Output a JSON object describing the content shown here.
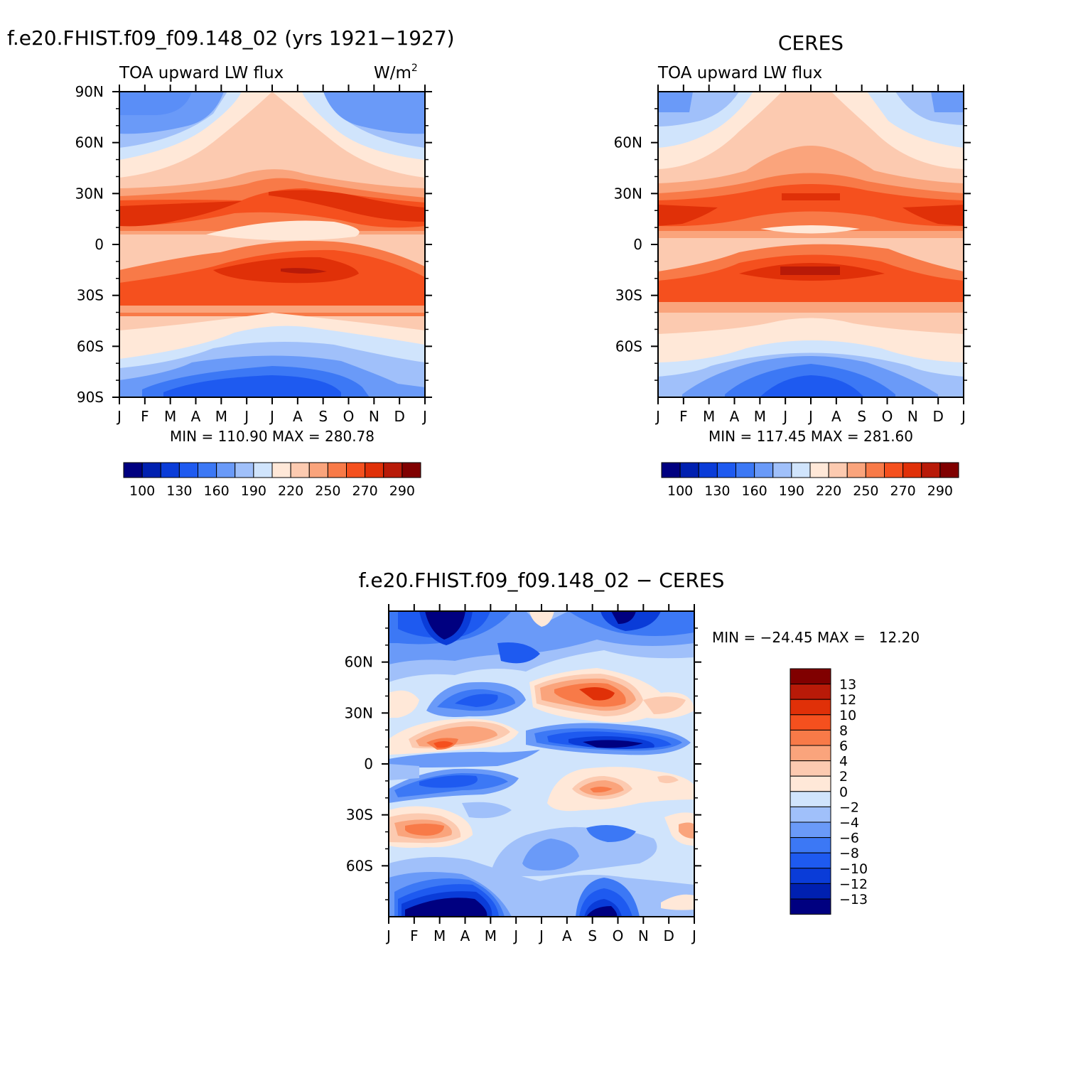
{
  "chart_data": [
    {
      "type": "heatmap",
      "id": "model",
      "title": "f.e20.FHIST.f09_f09.148_02 (yrs 1921-1927)",
      "variable": "TOA upward LW flux",
      "units": "W/m",
      "units_sup": "2",
      "x_ticklabels": [
        "J",
        "F",
        "M",
        "A",
        "M",
        "J",
        "J",
        "A",
        "S",
        "O",
        "N",
        "D",
        "J"
      ],
      "y_ticklabels": [
        "90N",
        "60N",
        "30N",
        "0",
        "30S",
        "60S",
        "90S"
      ],
      "y_values": [
        90,
        60,
        30,
        0,
        -30,
        -60,
        -90
      ],
      "stats": "MIN = 110.90 MAX = 280.78",
      "min": 110.9,
      "max": 280.78,
      "colorbar_labels": [
        "100",
        "130",
        "160",
        "190",
        "220",
        "250",
        "270",
        "290"
      ]
    },
    {
      "type": "heatmap",
      "id": "obs",
      "title": "CERES",
      "variable": "TOA upward LW flux",
      "x_ticklabels": [
        "J",
        "F",
        "M",
        "A",
        "M",
        "J",
        "J",
        "A",
        "S",
        "O",
        "N",
        "D",
        "J"
      ],
      "y_ticklabels": [
        "60N",
        "30N",
        "0",
        "30S",
        "60S"
      ],
      "y_values": [
        60,
        30,
        0,
        -30,
        -60
      ],
      "stats": "MIN = 117.45 MAX = 281.60",
      "min": 117.45,
      "max": 281.6,
      "colorbar_labels": [
        "100",
        "130",
        "160",
        "190",
        "220",
        "250",
        "270",
        "290"
      ]
    },
    {
      "type": "heatmap",
      "id": "diff",
      "title": "f.e20.FHIST.f09_f09.148_02 - CERES",
      "x_ticklabels": [
        "J",
        "F",
        "M",
        "A",
        "M",
        "J",
        "J",
        "A",
        "S",
        "O",
        "N",
        "D",
        "J"
      ],
      "y_ticklabels": [
        "60N",
        "30N",
        "0",
        "30S",
        "60S"
      ],
      "y_values": [
        60,
        30,
        0,
        -30,
        -60
      ],
      "stats": "MIN = -24.45 MAX =   12.20",
      "min": -24.45,
      "max": 12.2,
      "colorbar_labels": [
        "13",
        "12",
        "10",
        "8",
        "6",
        "4",
        "2",
        "0",
        "-2",
        "-4",
        "-6",
        "-8",
        "-10",
        "-12",
        "-13"
      ]
    }
  ],
  "colors": {
    "absolute_palette": [
      "#000080",
      "#0020b0",
      "#0a3cd8",
      "#1e5af0",
      "#3c78f5",
      "#6a9af8",
      "#a0c0fa",
      "#d0e4fc",
      "#ffe8d8",
      "#fccab0",
      "#faa47c",
      "#f87a48",
      "#f5501e",
      "#e03008",
      "#b81a08",
      "#800000"
    ],
    "diff_palette": [
      "#800000",
      "#b81a08",
      "#e03008",
      "#f5501e",
      "#f87a48",
      "#faa47c",
      "#fccab0",
      "#ffe8d8",
      "#d0e4fc",
      "#a0c0fa",
      "#6a9af8",
      "#3c78f5",
      "#1e5af0",
      "#0a3cd8",
      "#0020b0",
      "#000080"
    ]
  }
}
